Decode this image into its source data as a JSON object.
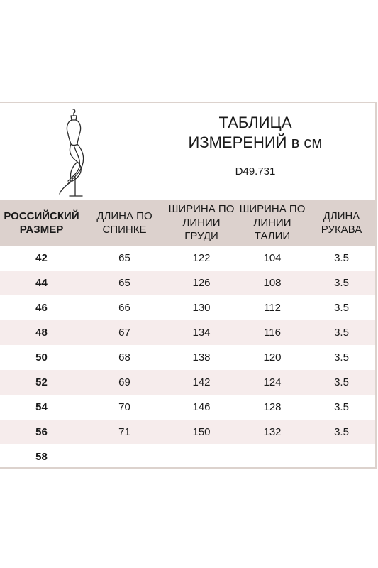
{
  "header": {
    "title_line1": "ТАБЛИЦА",
    "title_line2": "ИЗМЕРЕНИЙ в см",
    "article": "D49.731"
  },
  "table": {
    "columns": [
      "РОССИЙСКИЙ\nРАЗМЕР",
      "ДЛИНА ПО\nСПИНКЕ",
      "ШИРИНА ПО\nЛИНИИ\nГРУДИ",
      "ШИРИНА ПО\nЛИНИИ\nТАЛИИ",
      "ДЛИНА\nРУКАВА"
    ],
    "rows": [
      [
        "42",
        "65",
        "122",
        "104",
        "3.5"
      ],
      [
        "44",
        "65",
        "126",
        "108",
        "3.5"
      ],
      [
        "46",
        "66",
        "130",
        "112",
        "3.5"
      ],
      [
        "48",
        "67",
        "134",
        "116",
        "3.5"
      ],
      [
        "50",
        "68",
        "138",
        "120",
        "3.5"
      ],
      [
        "52",
        "69",
        "142",
        "124",
        "3.5"
      ],
      [
        "54",
        "70",
        "146",
        "128",
        "3.5"
      ],
      [
        "56",
        "71",
        "150",
        "132",
        "3.5"
      ],
      [
        "58",
        "",
        "",
        "",
        ""
      ]
    ]
  },
  "colors": {
    "header_bg": "#dcd1cd",
    "alt_row_bg": "#f6ecec",
    "border": "#dcd2cd"
  },
  "icons": {
    "mannequin": "dress-form-icon"
  }
}
